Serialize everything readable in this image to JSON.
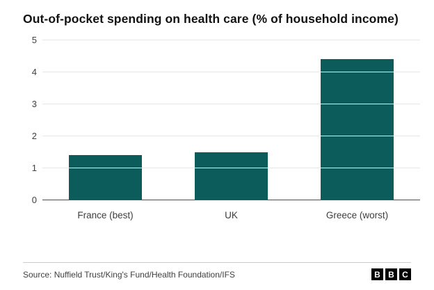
{
  "chart_data": {
    "type": "bar",
    "title": "Out-of-pocket spending on health care (% of household income)",
    "categories": [
      "France (best)",
      "UK",
      "Greece (worst)"
    ],
    "values": [
      1.4,
      1.5,
      4.4
    ],
    "ylim": [
      0,
      5
    ],
    "yticks": [
      0,
      1,
      2,
      3,
      4,
      5
    ],
    "bar_color": "#0d5c5c",
    "grid": true,
    "legend": false,
    "xlabel": "",
    "ylabel": ""
  },
  "footer": {
    "source": "Source: Nuffield Trust/King's Fund/Health Foundation/IFS",
    "logo_letters": [
      "B",
      "B",
      "C"
    ]
  }
}
